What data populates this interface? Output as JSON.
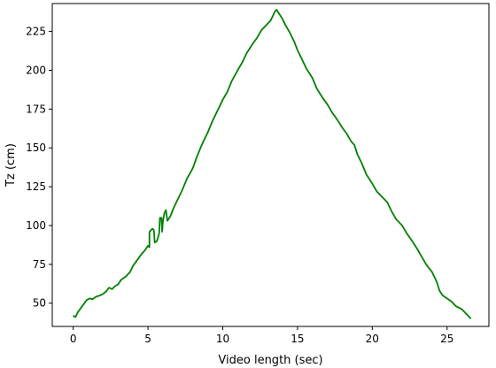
{
  "chart_data": {
    "type": "line",
    "title": "",
    "xlabel": "Video length (sec)",
    "ylabel": "Tz (cm)",
    "xlim": [
      -1.4,
      27.8
    ],
    "ylim": [
      35,
      243
    ],
    "xticks": [
      0,
      5,
      10,
      15,
      20,
      25
    ],
    "yticks": [
      50,
      75,
      100,
      125,
      150,
      175,
      200,
      225
    ],
    "grid": false,
    "legend": "none",
    "series": [
      {
        "color": "#008000",
        "points": [
          [
            0.0,
            42
          ],
          [
            0.15,
            41
          ],
          [
            0.3,
            44
          ],
          [
            0.45,
            46
          ],
          [
            0.6,
            48
          ],
          [
            0.75,
            50
          ],
          [
            0.9,
            52
          ],
          [
            1.1,
            53
          ],
          [
            1.3,
            52.5
          ],
          [
            1.5,
            54
          ],
          [
            1.8,
            55
          ],
          [
            2.0,
            56
          ],
          [
            2.2,
            57.5
          ],
          [
            2.4,
            60
          ],
          [
            2.6,
            59
          ],
          [
            2.8,
            61
          ],
          [
            3.0,
            62
          ],
          [
            3.2,
            65
          ],
          [
            3.5,
            67
          ],
          [
            3.8,
            70
          ],
          [
            4.0,
            74
          ],
          [
            4.3,
            78
          ],
          [
            4.6,
            82
          ],
          [
            4.8,
            84
          ],
          [
            5.0,
            87
          ],
          [
            5.1,
            86
          ],
          [
            5.1,
            96
          ],
          [
            5.3,
            98
          ],
          [
            5.4,
            97
          ],
          [
            5.45,
            89
          ],
          [
            5.6,
            90
          ],
          [
            5.75,
            95
          ],
          [
            5.8,
            105
          ],
          [
            5.9,
            105
          ],
          [
            5.95,
            96
          ],
          [
            6.0,
            103
          ],
          [
            6.1,
            108
          ],
          [
            6.2,
            110
          ],
          [
            6.3,
            103
          ],
          [
            6.5,
            106
          ],
          [
            6.7,
            111
          ],
          [
            7.0,
            117
          ],
          [
            7.3,
            123
          ],
          [
            7.6,
            130
          ],
          [
            8.0,
            137
          ],
          [
            8.3,
            145
          ],
          [
            8.6,
            152
          ],
          [
            9.0,
            160
          ],
          [
            9.3,
            167
          ],
          [
            9.6,
            173
          ],
          [
            10.0,
            181
          ],
          [
            10.3,
            186
          ],
          [
            10.6,
            193
          ],
          [
            11.0,
            200
          ],
          [
            11.3,
            205
          ],
          [
            11.6,
            211
          ],
          [
            12.0,
            217
          ],
          [
            12.3,
            221
          ],
          [
            12.6,
            226
          ],
          [
            12.9,
            229
          ],
          [
            13.2,
            232
          ],
          [
            13.4,
            236
          ],
          [
            13.5,
            238
          ],
          [
            13.6,
            239
          ],
          [
            13.8,
            236
          ],
          [
            14.0,
            233
          ],
          [
            14.2,
            229
          ],
          [
            14.5,
            224
          ],
          [
            14.8,
            218
          ],
          [
            15.0,
            213
          ],
          [
            15.3,
            207
          ],
          [
            15.6,
            201
          ],
          [
            16.0,
            195
          ],
          [
            16.3,
            188
          ],
          [
            16.5,
            185
          ],
          [
            16.7,
            182
          ],
          [
            17.0,
            178
          ],
          [
            17.3,
            173
          ],
          [
            17.6,
            169
          ],
          [
            18.0,
            163
          ],
          [
            18.3,
            159
          ],
          [
            18.6,
            154
          ],
          [
            18.8,
            152
          ],
          [
            19.0,
            146
          ],
          [
            19.3,
            140
          ],
          [
            19.6,
            133
          ],
          [
            20.0,
            127
          ],
          [
            20.3,
            122
          ],
          [
            20.6,
            119
          ],
          [
            21.0,
            115
          ],
          [
            21.3,
            109
          ],
          [
            21.6,
            104
          ],
          [
            22.0,
            100
          ],
          [
            22.3,
            95
          ],
          [
            22.6,
            91
          ],
          [
            23.0,
            85
          ],
          [
            23.3,
            80
          ],
          [
            23.6,
            75
          ],
          [
            24.0,
            70
          ],
          [
            24.3,
            64
          ],
          [
            24.5,
            58
          ],
          [
            24.7,
            55
          ],
          [
            25.0,
            53
          ],
          [
            25.3,
            51
          ],
          [
            25.6,
            48
          ],
          [
            26.0,
            46
          ],
          [
            26.3,
            43
          ],
          [
            26.6,
            40
          ]
        ]
      }
    ]
  }
}
